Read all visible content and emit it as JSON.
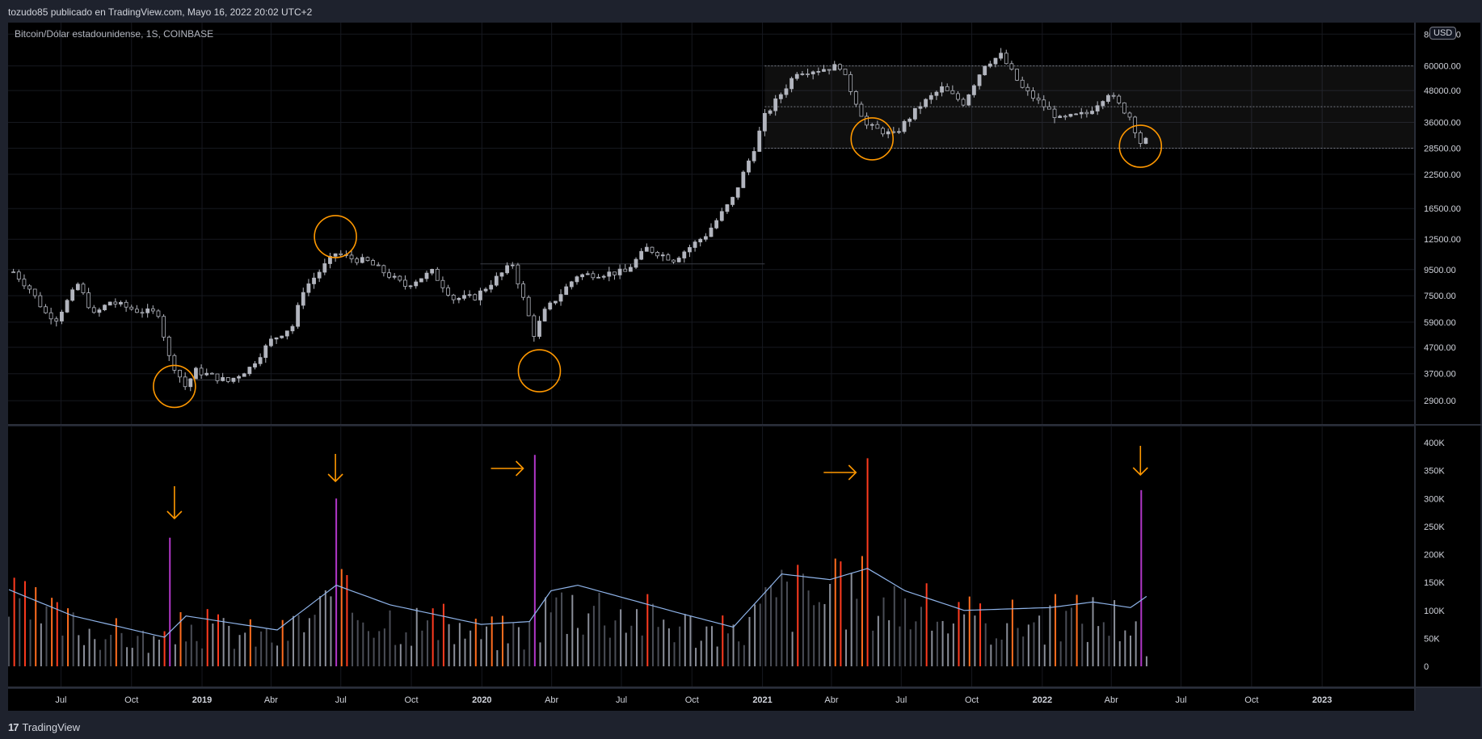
{
  "header": {
    "publish_text": "tozudo85 publicado en TradingView.com, Mayo 16, 2022 20:02 UTC+2",
    "symbol_label": "Bitcoin/Dólar estadounidense, 1S, COINBASE",
    "currency_badge": "USD"
  },
  "footer": {
    "brand": "TradingView",
    "logo_glyph": "17"
  },
  "colors": {
    "background": "#000000",
    "frame": "#1e222d",
    "candle": "#b2b5be",
    "volume_gray": "#8a8e99",
    "volume_orange": "#ff6d1f",
    "volume_red": "#ff3b1f",
    "volume_purple": "#b137c8",
    "volume_ma": "#8fb4ea",
    "annotation": "#ff9800",
    "axis_text": "#d1d4dc"
  },
  "chart_data": [
    {
      "type": "candlestick",
      "title": "Bitcoin/Dólar estadounidense, 1S, COINBASE",
      "scale": "log",
      "y_ticks": [
        2900,
        3700,
        4700,
        5900,
        7500,
        9500,
        12500,
        16500,
        22500,
        28500,
        36000,
        48000,
        60000,
        80000
      ],
      "y_tick_labels": [
        "2900.00",
        "3700.00",
        "4700.00",
        "5900.00",
        "7500.00",
        "9500.00",
        "12500.00",
        "16500.00",
        "22500.00",
        "28500.00",
        "36000.00",
        "48000.00",
        "60000.00",
        "80000.00"
      ],
      "x_ticks": [
        "Jul",
        "Oct",
        "2019",
        "Abr",
        "Jul",
        "Oct",
        "2020",
        "Abr",
        "Jul",
        "Oct",
        "2021",
        "Abr",
        "Jul",
        "Oct",
        "2022",
        "Abr",
        "Jul",
        "Oct",
        "2023"
      ],
      "x_range": [
        "2018-04-23",
        "2023-05-01"
      ],
      "series": [
        {
          "date": "2018-04-30",
          "close": 9300
        },
        {
          "date": "2018-05-21",
          "close": 8000
        },
        {
          "date": "2018-06-11",
          "close": 6400
        },
        {
          "date": "2018-06-25",
          "close": 6100
        },
        {
          "date": "2018-07-23",
          "close": 8300
        },
        {
          "date": "2018-08-13",
          "close": 6300
        },
        {
          "date": "2018-09-03",
          "close": 7100
        },
        {
          "date": "2018-10-08",
          "close": 6550
        },
        {
          "date": "2018-11-05",
          "close": 6400
        },
        {
          "date": "2018-11-19",
          "close": 4300
        },
        {
          "date": "2018-12-10",
          "close": 3300
        },
        {
          "date": "2018-12-24",
          "close": 3800
        },
        {
          "date": "2019-02-04",
          "close": 3450
        },
        {
          "date": "2019-03-04",
          "close": 3900
        },
        {
          "date": "2019-04-01",
          "close": 5000
        },
        {
          "date": "2019-04-29",
          "close": 5700
        },
        {
          "date": "2019-05-13",
          "close": 7900
        },
        {
          "date": "2019-06-24",
          "close": 11000
        },
        {
          "date": "2019-07-15",
          "close": 10500
        },
        {
          "date": "2019-08-05",
          "close": 10200
        },
        {
          "date": "2019-09-23",
          "close": 8200
        },
        {
          "date": "2019-10-28",
          "close": 9300
        },
        {
          "date": "2019-11-25",
          "close": 7300
        },
        {
          "date": "2019-12-23",
          "close": 7400
        },
        {
          "date": "2020-02-10",
          "close": 10000
        },
        {
          "date": "2020-03-09",
          "close": 5300
        },
        {
          "date": "2020-03-23",
          "close": 6500
        },
        {
          "date": "2020-05-04",
          "close": 9000
        },
        {
          "date": "2020-07-06",
          "close": 9300
        },
        {
          "date": "2020-08-03",
          "close": 11500
        },
        {
          "date": "2020-09-07",
          "close": 10400
        },
        {
          "date": "2020-10-19",
          "close": 13000
        },
        {
          "date": "2020-11-23",
          "close": 18000
        },
        {
          "date": "2020-12-21",
          "close": 28500
        },
        {
          "date": "2021-01-04",
          "close": 38000
        },
        {
          "date": "2021-02-15",
          "close": 57000
        },
        {
          "date": "2021-03-15",
          "close": 58000
        },
        {
          "date": "2021-04-12",
          "close": 60000
        },
        {
          "date": "2021-05-17",
          "close": 35000
        },
        {
          "date": "2021-06-21",
          "close": 32000
        },
        {
          "date": "2021-07-26",
          "close": 42000
        },
        {
          "date": "2021-08-23",
          "close": 49000
        },
        {
          "date": "2021-09-20",
          "close": 43000
        },
        {
          "date": "2021-10-18",
          "close": 61000
        },
        {
          "date": "2021-11-08",
          "close": 66000
        },
        {
          "date": "2021-12-06",
          "close": 49000
        },
        {
          "date": "2022-01-24",
          "close": 37000
        },
        {
          "date": "2022-02-28",
          "close": 39000
        },
        {
          "date": "2022-03-28",
          "close": 47000
        },
        {
          "date": "2022-04-25",
          "close": 38000
        },
        {
          "date": "2022-05-09",
          "close": 30000
        },
        {
          "date": "2022-05-16",
          "close": 30500
        }
      ]
    },
    {
      "type": "bar",
      "title": "Volume",
      "y_ticks": [
        0,
        50000,
        100000,
        150000,
        200000,
        250000,
        300000,
        350000,
        400000
      ],
      "y_tick_labels": [
        "0",
        "50K",
        "100K",
        "150K",
        "200K",
        "250K",
        "300K",
        "350K",
        "400K"
      ],
      "peaks": [
        {
          "date": "2018-11-19",
          "value": 230000,
          "color": "purple"
        },
        {
          "date": "2019-06-24",
          "value": 300000,
          "color": "purple"
        },
        {
          "date": "2020-03-09",
          "value": 378000,
          "color": "purple"
        },
        {
          "date": "2021-05-17",
          "value": 372000,
          "color": "red"
        },
        {
          "date": "2022-05-09",
          "value": 315000,
          "color": "purple"
        }
      ],
      "moving_average": [
        {
          "date": "2018-04-23",
          "value": 137000
        },
        {
          "date": "2018-07-16",
          "value": 90000
        },
        {
          "date": "2018-11-12",
          "value": 52000
        },
        {
          "date": "2018-12-10",
          "value": 90000
        },
        {
          "date": "2019-04-08",
          "value": 65000
        },
        {
          "date": "2019-06-24",
          "value": 145000
        },
        {
          "date": "2019-09-02",
          "value": 110000
        },
        {
          "date": "2019-12-30",
          "value": 75000
        },
        {
          "date": "2020-03-02",
          "value": 80000
        },
        {
          "date": "2020-03-30",
          "value": 135000
        },
        {
          "date": "2020-05-04",
          "value": 145000
        },
        {
          "date": "2020-09-14",
          "value": 95000
        },
        {
          "date": "2020-11-23",
          "value": 70000
        },
        {
          "date": "2021-01-25",
          "value": 165000
        },
        {
          "date": "2021-03-29",
          "value": 155000
        },
        {
          "date": "2021-05-17",
          "value": 175000
        },
        {
          "date": "2021-07-05",
          "value": 135000
        },
        {
          "date": "2021-09-20",
          "value": 100000
        },
        {
          "date": "2022-01-10",
          "value": 105000
        },
        {
          "date": "2022-03-07",
          "value": 115000
        },
        {
          "date": "2022-04-25",
          "value": 105000
        },
        {
          "date": "2022-05-16",
          "value": 125000
        }
      ]
    }
  ]
}
